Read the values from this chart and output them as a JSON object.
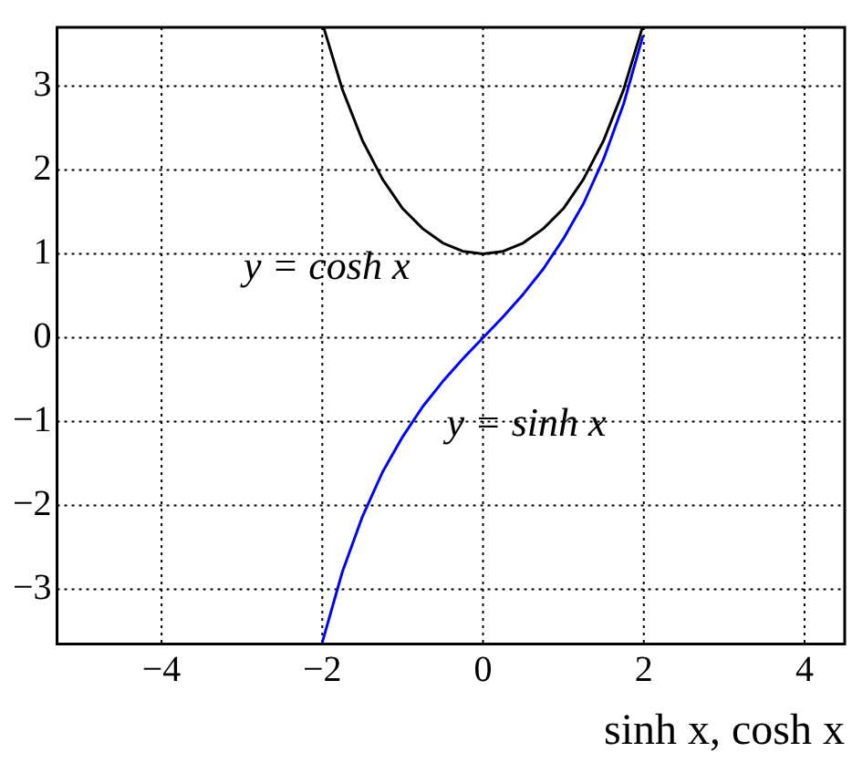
{
  "chart_data": {
    "type": "line",
    "xlabel": "sinh x, cosh x",
    "series": [
      {
        "name": "y = cosh x",
        "color": "#000000",
        "x": [
          -1.98,
          -1.75,
          -1.5,
          -1.25,
          -1,
          -0.75,
          -0.5,
          -0.25,
          0,
          0.25,
          0.5,
          0.75,
          1,
          1.25,
          1.5,
          1.75,
          1.98
        ],
        "values": [
          3.69,
          2.96,
          2.35,
          1.89,
          1.54,
          1.3,
          1.13,
          1.03,
          1,
          1.03,
          1.13,
          1.3,
          1.54,
          1.89,
          2.35,
          2.96,
          3.69
        ]
      },
      {
        "name": "y = sinh x",
        "color": "#0000ff",
        "x": [
          -2,
          -1.75,
          -1.5,
          -1.25,
          -1,
          -0.75,
          -0.5,
          -0.25,
          0,
          0.25,
          0.5,
          0.75,
          1,
          1.25,
          1.5,
          1.75,
          1.99
        ],
        "values": [
          -3.63,
          -2.79,
          -2.13,
          -1.6,
          -1.18,
          -0.82,
          -0.52,
          -0.25,
          0,
          0.25,
          0.52,
          0.82,
          1.18,
          1.6,
          2.13,
          2.79,
          3.6
        ]
      }
    ],
    "xlim": [
      -5.3,
      4.5
    ],
    "ylim": [
      -3.65,
      3.7
    ],
    "xticks": [
      {
        "value": -4,
        "label": "−4"
      },
      {
        "value": -2,
        "label": "−2"
      },
      0,
      2,
      4
    ],
    "yticks": [
      {
        "value": -3,
        "label": "−3"
      },
      {
        "value": -2,
        "label": "−2"
      },
      {
        "value": -1,
        "label": "−1"
      },
      0,
      1,
      2,
      3
    ],
    "grid": true,
    "marker": "none",
    "line_style": "solid",
    "legend": false
  }
}
